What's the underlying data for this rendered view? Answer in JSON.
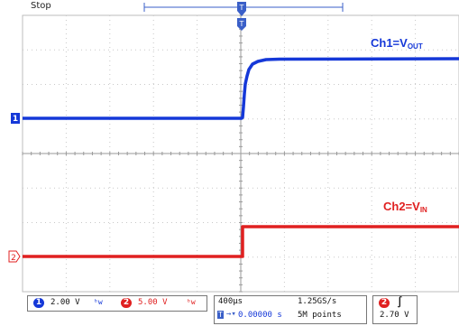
{
  "status": {
    "run_state": "Stop"
  },
  "trigger_marker": {
    "symbol": "T"
  },
  "channels": {
    "ch1": {
      "marker": "1",
      "label_prefix": "Ch1=V",
      "label_sub": "OUT",
      "color": "#1538d8",
      "scale": "2.00 V",
      "coupling_symbol": "ᵇw"
    },
    "ch2": {
      "marker": "2",
      "label_prefix": "Ch2=V",
      "label_sub": "IN",
      "color": "#e02020",
      "scale": "5.00 V",
      "coupling_symbol": "ᵇw"
    }
  },
  "timebase": {
    "scale": "400µs",
    "position": "0.00000 s",
    "sample_rate": "1.25GS/s",
    "record_length": "5M points"
  },
  "trigger": {
    "source": "2",
    "slope_symbol": "∫",
    "level": "2.70 V"
  }
}
